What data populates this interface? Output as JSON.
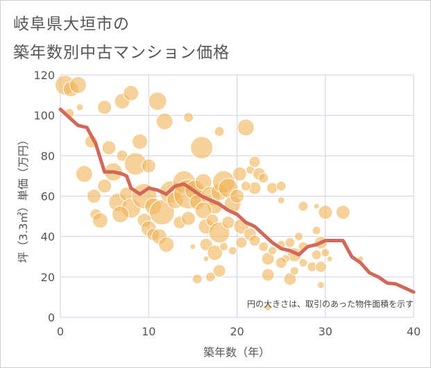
{
  "header": {
    "title_line1": "岐阜県大垣市の",
    "title_line2": "築年数別中古マンション価格"
  },
  "chart_data": {
    "type": "scatter",
    "title": "岐阜県大垣市の 築年数別中古マンション価格",
    "xlabel": "築年数（年）",
    "ylabel": "坪（3.3㎡）単価（万円）",
    "xlim": [
      0,
      40
    ],
    "ylim": [
      0,
      120
    ],
    "xticks": [
      "0",
      "10",
      "20",
      "30",
      "40"
    ],
    "yticks": [
      "0",
      "20",
      "40",
      "60",
      "80",
      "100",
      "120"
    ],
    "grid": true,
    "annotation": "円の大きさは、取引のあった物件面積を示す",
    "colors": {
      "bubble": "#f0b55a",
      "line": "#d2685a",
      "grid": "#c9d3e0"
    },
    "series": [
      {
        "kind": "bubble",
        "points": [
          {
            "x": 0.5,
            "y": 115,
            "s": 14
          },
          {
            "x": 1.2,
            "y": 113,
            "s": 11
          },
          {
            "x": 2,
            "y": 115,
            "s": 12
          },
          {
            "x": 2.2,
            "y": 104,
            "s": 5
          },
          {
            "x": 1,
            "y": 101,
            "s": 7
          },
          {
            "x": 5,
            "y": 104,
            "s": 10
          },
          {
            "x": 7,
            "y": 107,
            "s": 11
          },
          {
            "x": 8,
            "y": 111,
            "s": 11
          },
          {
            "x": 11,
            "y": 107,
            "s": 13
          },
          {
            "x": 11.8,
            "y": 97,
            "s": 12
          },
          {
            "x": 14.5,
            "y": 99,
            "s": 7
          },
          {
            "x": 18,
            "y": 92,
            "s": 7
          },
          {
            "x": 21,
            "y": 94,
            "s": 12
          },
          {
            "x": 3.5,
            "y": 87,
            "s": 9
          },
          {
            "x": 9,
            "y": 87,
            "s": 11
          },
          {
            "x": 5.5,
            "y": 84,
            "s": 10
          },
          {
            "x": 6,
            "y": 72,
            "s": 13
          },
          {
            "x": 7,
            "y": 80,
            "s": 8
          },
          {
            "x": 8.5,
            "y": 76,
            "s": 16
          },
          {
            "x": 10,
            "y": 75,
            "s": 10
          },
          {
            "x": 2.7,
            "y": 71,
            "s": 12
          },
          {
            "x": 5,
            "y": 65,
            "s": 10
          },
          {
            "x": 3.8,
            "y": 60,
            "s": 10
          },
          {
            "x": 6.5,
            "y": 57,
            "s": 13
          },
          {
            "x": 7.5,
            "y": 61,
            "s": 10
          },
          {
            "x": 8,
            "y": 54,
            "s": 14
          },
          {
            "x": 9.5,
            "y": 60,
            "s": 18
          },
          {
            "x": 10.5,
            "y": 55,
            "s": 12
          },
          {
            "x": 11.5,
            "y": 52,
            "s": 18
          },
          {
            "x": 12.5,
            "y": 62,
            "s": 16
          },
          {
            "x": 13,
            "y": 58,
            "s": 12
          },
          {
            "x": 14,
            "y": 67,
            "s": 16
          },
          {
            "x": 14.5,
            "y": 61,
            "s": 21
          },
          {
            "x": 15.2,
            "y": 63,
            "s": 14
          },
          {
            "x": 15.5,
            "y": 57,
            "s": 11
          },
          {
            "x": 16,
            "y": 84,
            "s": 16
          },
          {
            "x": 16.2,
            "y": 67,
            "s": 12
          },
          {
            "x": 17,
            "y": 60,
            "s": 14
          },
          {
            "x": 17.5,
            "y": 55,
            "s": 11
          },
          {
            "x": 18,
            "y": 62,
            "s": 12
          },
          {
            "x": 18.5,
            "y": 67,
            "s": 16
          },
          {
            "x": 19,
            "y": 64,
            "s": 14
          },
          {
            "x": 19.5,
            "y": 56,
            "s": 12
          },
          {
            "x": 20,
            "y": 60,
            "s": 10
          },
          {
            "x": 20.3,
            "y": 71,
            "s": 10
          },
          {
            "x": 21.5,
            "y": 73,
            "s": 6
          },
          {
            "x": 22,
            "y": 77,
            "s": 8
          },
          {
            "x": 22.5,
            "y": 71,
            "s": 9
          },
          {
            "x": 23,
            "y": 69,
            "s": 7
          },
          {
            "x": 22,
            "y": 64,
            "s": 9
          },
          {
            "x": 21,
            "y": 65,
            "s": 7
          },
          {
            "x": 24,
            "y": 64,
            "s": 8
          },
          {
            "x": 25,
            "y": 65,
            "s": 7
          },
          {
            "x": 25,
            "y": 58,
            "s": 5
          },
          {
            "x": 4,
            "y": 51,
            "s": 8
          },
          {
            "x": 4.5,
            "y": 48,
            "s": 11
          },
          {
            "x": 6.8,
            "y": 51,
            "s": 12
          },
          {
            "x": 9.5,
            "y": 48,
            "s": 10
          },
          {
            "x": 10,
            "y": 44,
            "s": 11
          },
          {
            "x": 10.5,
            "y": 41,
            "s": 9
          },
          {
            "x": 11.2,
            "y": 40,
            "s": 11
          },
          {
            "x": 12,
            "y": 36,
            "s": 11
          },
          {
            "x": 13.5,
            "y": 47,
            "s": 9
          },
          {
            "x": 14.5,
            "y": 49,
            "s": 10
          },
          {
            "x": 16.2,
            "y": 53,
            "s": 12
          },
          {
            "x": 16.5,
            "y": 45,
            "s": 11
          },
          {
            "x": 17.2,
            "y": 48,
            "s": 9
          },
          {
            "x": 18,
            "y": 42,
            "s": 15
          },
          {
            "x": 19,
            "y": 47,
            "s": 9
          },
          {
            "x": 20.5,
            "y": 45,
            "s": 11
          },
          {
            "x": 21.5,
            "y": 41,
            "s": 9
          },
          {
            "x": 20.5,
            "y": 37,
            "s": 8
          },
          {
            "x": 16.5,
            "y": 36,
            "s": 9
          },
          {
            "x": 17.5,
            "y": 32,
            "s": 11
          },
          {
            "x": 18.5,
            "y": 35,
            "s": 6
          },
          {
            "x": 19.5,
            "y": 33,
            "s": 6
          },
          {
            "x": 22,
            "y": 38,
            "s": 8
          },
          {
            "x": 23,
            "y": 35,
            "s": 7
          },
          {
            "x": 23.5,
            "y": 29,
            "s": 9
          },
          {
            "x": 24,
            "y": 33,
            "s": 6
          },
          {
            "x": 25,
            "y": 36,
            "s": 6
          },
          {
            "x": 26,
            "y": 37,
            "s": 7
          },
          {
            "x": 27,
            "y": 40,
            "s": 6
          },
          {
            "x": 27.5,
            "y": 35,
            "s": 7
          },
          {
            "x": 26.5,
            "y": 31,
            "s": 10
          },
          {
            "x": 25.5,
            "y": 29,
            "s": 6
          },
          {
            "x": 25,
            "y": 27,
            "s": 8
          },
          {
            "x": 27.5,
            "y": 27,
            "s": 6
          },
          {
            "x": 29,
            "y": 31,
            "s": 7
          },
          {
            "x": 29.5,
            "y": 37,
            "s": 9
          },
          {
            "x": 30,
            "y": 32,
            "s": 6
          },
          {
            "x": 28.5,
            "y": 25,
            "s": 7
          },
          {
            "x": 29.5,
            "y": 25,
            "s": 8
          },
          {
            "x": 29,
            "y": 43,
            "s": 6
          },
          {
            "x": 30,
            "y": 52,
            "s": 10
          },
          {
            "x": 32,
            "y": 52,
            "s": 10
          },
          {
            "x": 27.5,
            "y": 55,
            "s": 7
          },
          {
            "x": 29,
            "y": 55,
            "s": 4
          },
          {
            "x": 26,
            "y": 19,
            "s": 9
          },
          {
            "x": 26.5,
            "y": 23,
            "s": 6
          },
          {
            "x": 23.5,
            "y": 21,
            "s": 9
          },
          {
            "x": 18,
            "y": 23,
            "s": 9
          },
          {
            "x": 17,
            "y": 20,
            "s": 7
          },
          {
            "x": 15.5,
            "y": 19,
            "s": 7
          },
          {
            "x": 29.5,
            "y": 16,
            "s": 5
          },
          {
            "x": 23.5,
            "y": 5,
            "s": 5
          },
          {
            "x": 30.5,
            "y": 29,
            "s": 4
          },
          {
            "x": 34,
            "y": 29,
            "s": 4
          },
          {
            "x": 16.5,
            "y": 29,
            "s": 4
          },
          {
            "x": 15,
            "y": 35,
            "s": 4
          }
        ]
      },
      {
        "kind": "line",
        "x": [
          0,
          0.5,
          1,
          2,
          3,
          3.5,
          4,
          5,
          6,
          7,
          7.5,
          8,
          9,
          10,
          11,
          12,
          13,
          14,
          15,
          16,
          17,
          18,
          19,
          20,
          21,
          22,
          23,
          24,
          25,
          26,
          27,
          28,
          29,
          30,
          31,
          32,
          33,
          34,
          35,
          36,
          37,
          38,
          39,
          40
        ],
        "y": [
          103,
          101,
          99,
          95,
          94,
          90,
          86,
          72,
          72,
          71,
          70,
          64,
          61,
          64,
          63,
          61,
          65,
          66,
          63,
          60,
          58,
          56,
          53,
          51,
          47,
          45,
          41,
          37,
          34,
          33,
          31,
          35,
          36,
          38,
          38,
          38,
          30,
          27,
          22,
          20,
          17,
          16.5,
          14.5,
          12.5
        ]
      }
    ]
  }
}
